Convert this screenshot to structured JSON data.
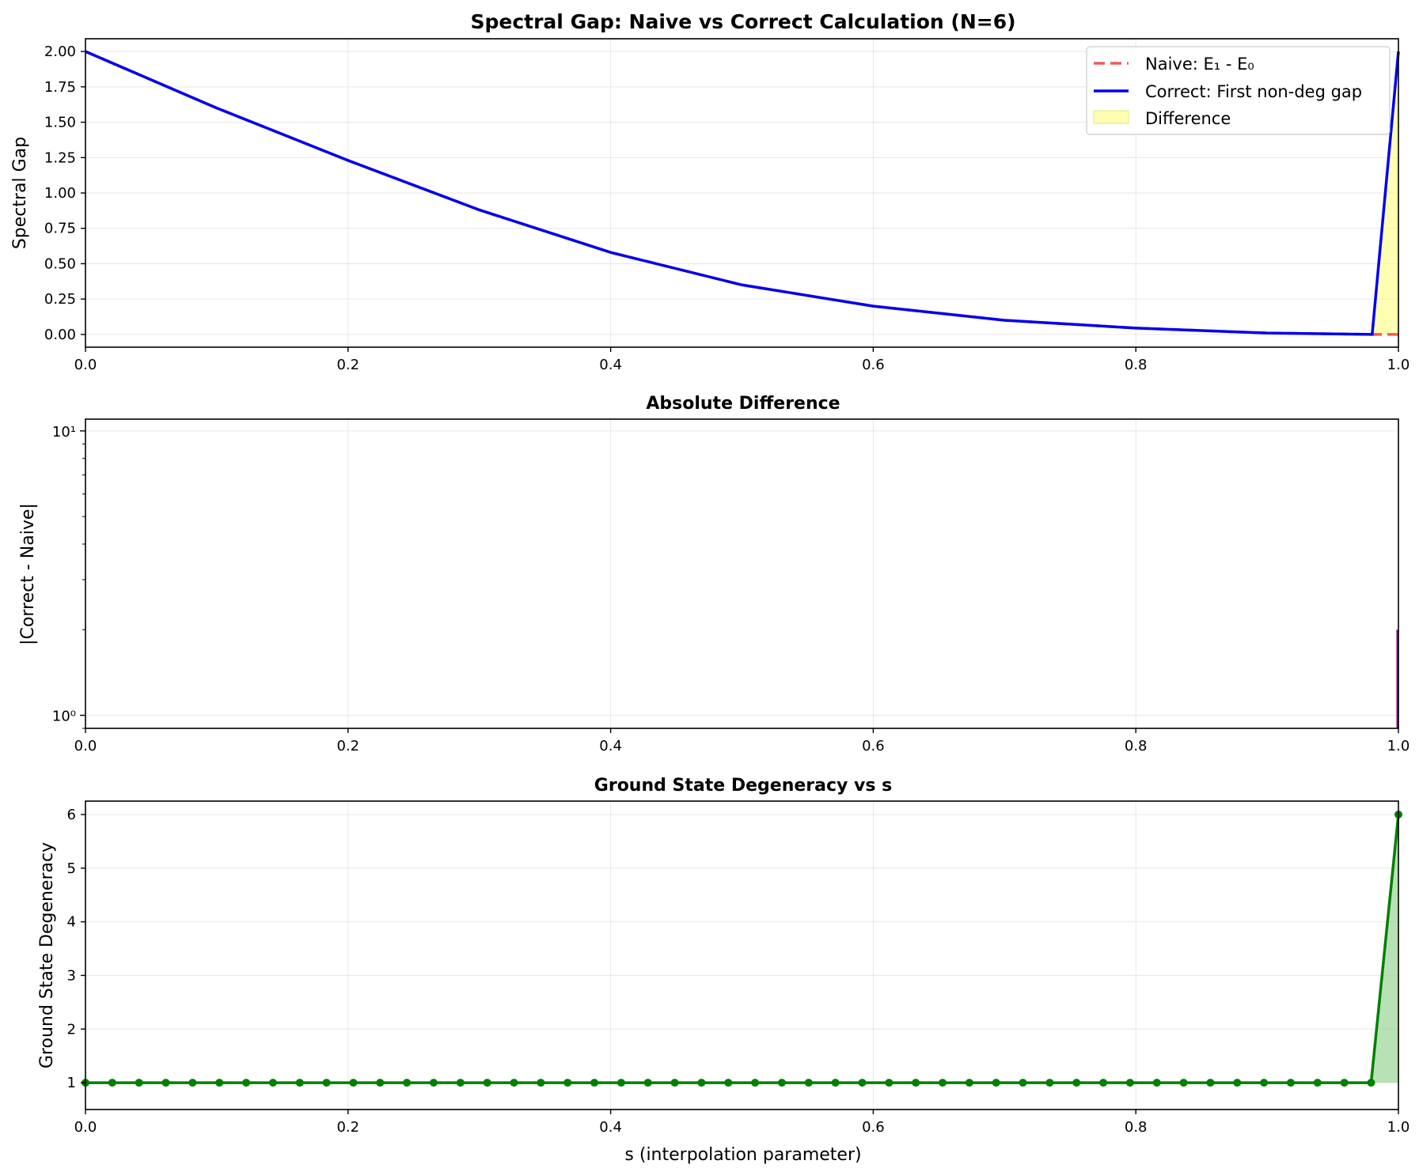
{
  "chart_data": [
    {
      "type": "line",
      "title": "Spectral Gap: Naive vs Correct Calculation (N=6)",
      "xlabel": "",
      "ylabel": "Spectral Gap",
      "xlim": [
        0,
        1
      ],
      "ylim": [
        -0.09,
        2.09
      ],
      "xticks": [
        0,
        0.2,
        0.4,
        0.6,
        0.8,
        1.0
      ],
      "xtick_labels": [
        "0.0",
        "0.2",
        "0.4",
        "0.6",
        "0.8",
        "1.0"
      ],
      "yticks": [
        0,
        0.25,
        0.5,
        0.75,
        1.0,
        1.25,
        1.5,
        1.75,
        2.0
      ],
      "ytick_labels": [
        "0.00",
        "0.25",
        "0.50",
        "0.75",
        "1.00",
        "1.25",
        "1.50",
        "1.75",
        "2.00"
      ],
      "grid": true,
      "legend_position": "top-right",
      "x": [
        0,
        0.1,
        0.2,
        0.3,
        0.4,
        0.5,
        0.6,
        0.7,
        0.8,
        0.9,
        0.98,
        1.0
      ],
      "series": [
        {
          "name": "Naive: E₁ - E₀",
          "style": "dashed",
          "color": "#f04040",
          "values": [
            2.0,
            1.6,
            1.23,
            0.88,
            0.58,
            0.35,
            0.2,
            0.1,
            0.045,
            0.01,
            0.0,
            0.0
          ]
        },
        {
          "name": "Correct: First non-deg gap",
          "style": "solid",
          "color": "#0000ee",
          "values": [
            2.0,
            1.6,
            1.23,
            0.88,
            0.58,
            0.35,
            0.2,
            0.1,
            0.045,
            0.01,
            0.0,
            2.0
          ]
        }
      ],
      "fill": {
        "name": "Difference",
        "color": "#ffff66",
        "between": [
          "Naive: E₁ - E₀",
          "Correct: First non-deg gap"
        ]
      }
    },
    {
      "type": "line",
      "title": "Absolute Difference",
      "xlabel": "",
      "ylabel": "|Correct - Naive|",
      "yscale": "log",
      "xlim": [
        0,
        1
      ],
      "ylim": [
        0.9,
        11
      ],
      "xticks": [
        0,
        0.2,
        0.4,
        0.6,
        0.8,
        1.0
      ],
      "xtick_labels": [
        "0.0",
        "0.2",
        "0.4",
        "0.6",
        "0.8",
        "1.0"
      ],
      "ytick_labels": [
        "10⁰",
        "10¹"
      ],
      "grid": true,
      "series": [
        {
          "color": "#800080",
          "x": [
            1.0,
            1.0
          ],
          "values": [
            0.9,
            2.0
          ]
        }
      ]
    },
    {
      "type": "line",
      "title": "Ground State Degeneracy vs s",
      "xlabel": "s (interpolation parameter)",
      "ylabel": "Ground State Degeneracy",
      "xlim": [
        0,
        1
      ],
      "ylim": [
        0.5,
        6.25
      ],
      "xticks": [
        0,
        0.2,
        0.4,
        0.6,
        0.8,
        1.0
      ],
      "xtick_labels": [
        "0.0",
        "0.2",
        "0.4",
        "0.6",
        "0.8",
        "1.0"
      ],
      "yticks": [
        1,
        2,
        3,
        4,
        5,
        6
      ],
      "ytick_labels": [
        "1",
        "2",
        "3",
        "4",
        "5",
        "6"
      ],
      "grid": true,
      "series": [
        {
          "color": "#008000",
          "markers": true,
          "x_start": 0,
          "x_step": 0.0204,
          "count": 50,
          "values_rule": "1 for all points except last; last point = 6",
          "last_value": 6,
          "base_value": 1
        }
      ],
      "fill": {
        "color": "#a6d6a0",
        "from": 1
      }
    }
  ]
}
